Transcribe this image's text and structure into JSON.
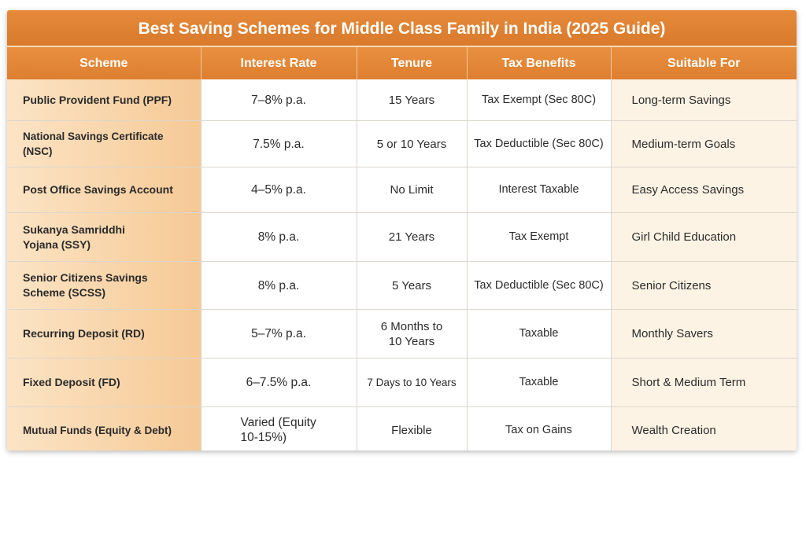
{
  "title": "Best Saving Schemes for Middle Class Family in India (2025 Guide)",
  "columns": [
    "Scheme",
    "Interest Rate",
    "Tenure",
    "Tax Benefits",
    "Suitable For"
  ],
  "rows": [
    {
      "scheme": "Public Provident Fund (PPF)",
      "rate": "7–8% p.a.",
      "tenure": "15 Years",
      "tax": "Tax Exempt (Sec 80C)",
      "suitable": "Long-term Savings"
    },
    {
      "scheme": "National Savings Certificate (NSC)",
      "rate": "7.5% p.a.",
      "tenure": "5 or 10 Years",
      "tax": "Tax Deductible (Sec 80C)",
      "suitable": "Medium-term Goals"
    },
    {
      "scheme": "Post Office Savings Account",
      "rate": "4–5% p.a.",
      "tenure": "No Limit",
      "tax": "Interest Taxable",
      "suitable": "Easy Access Savings"
    },
    {
      "scheme": "Sukanya Samriddhi Yojana (SSY)",
      "rate": "8% p.a.",
      "tenure": "21 Years",
      "tax": "Tax Exempt",
      "suitable": "Girl Child Education"
    },
    {
      "scheme": "Senior Citizens Savings Scheme (SCSS)",
      "rate": "8% p.a.",
      "tenure": "5 Years",
      "tax": "Tax Deductible (Sec 80C)",
      "suitable": "Senior Citizens"
    },
    {
      "scheme": "Recurring Deposit (RD)",
      "rate": "5–7% p.a.",
      "tenure": "6 Months to 10 Years",
      "tax": "Taxable",
      "suitable": "Monthly Savers"
    },
    {
      "scheme": "Fixed Deposit (FD)",
      "rate": "6–7.5% p.a.",
      "tenure": "7 Days to 10 Years",
      "tax": "Taxable",
      "suitable": "Short & Medium Term"
    },
    {
      "scheme": "Mutual Funds (Equity & Debt)",
      "rate": "Varied (Equity 10-15%)",
      "tenure": "Flexible",
      "tax": "Tax on Gains",
      "suitable": "Wealth Creation"
    }
  ]
}
